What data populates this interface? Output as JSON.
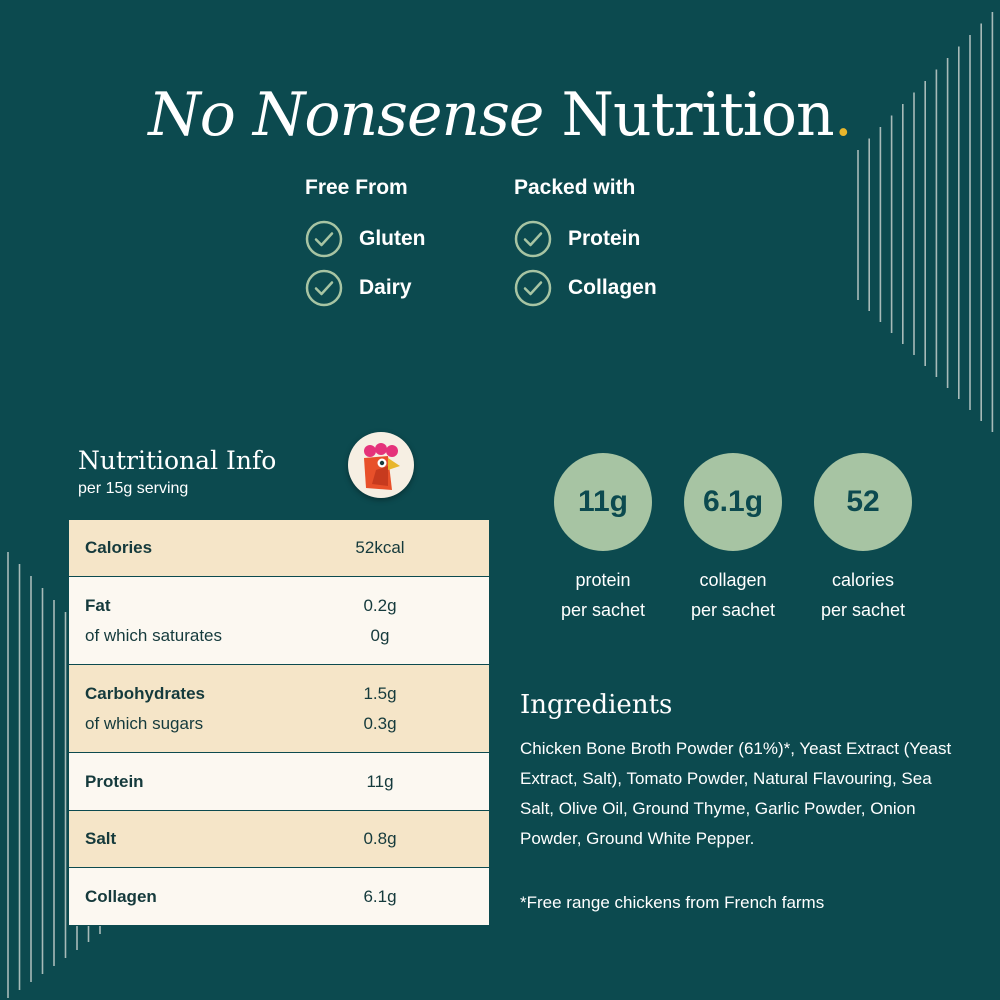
{
  "headline": {
    "italic": "No Nonsense",
    "regular": "Nutrition",
    "dot": "."
  },
  "free_from": {
    "title": "Free From",
    "items": [
      "Gluten",
      "Dairy"
    ]
  },
  "packed_with": {
    "title": "Packed with",
    "items": [
      "Protein",
      "Collagen"
    ]
  },
  "nutrition": {
    "title": "Nutritional Info",
    "subtitle": "per 15g serving",
    "rows": [
      {
        "label": "Calories",
        "value": "52kcal"
      },
      {
        "label": "Fat",
        "value": "0.2g",
        "sub_label": "of which saturates",
        "sub_value": "0g"
      },
      {
        "label": "Carbohydrates",
        "value": "1.5g",
        "sub_label": "of which sugars",
        "sub_value": "0.3g"
      },
      {
        "label": "Protein",
        "value": "11g"
      },
      {
        "label": "Salt",
        "value": "0.8g"
      },
      {
        "label": "Collagen",
        "value": "6.1g"
      }
    ]
  },
  "stats": [
    {
      "value": "11g",
      "line1": "protein",
      "line2": "per sachet"
    },
    {
      "value": "6.1g",
      "line1": "collagen",
      "line2": "per sachet"
    },
    {
      "value": "52",
      "line1": "calories",
      "line2": "per sachet"
    }
  ],
  "ingredients": {
    "title": "Ingredients",
    "text": "Chicken Bone Broth Powder (61%)*, Yeast Extract (Yeast Extract, Salt), Tomato Powder, Natural Flavouring, Sea Salt, Olive Oil, Ground Thyme, Garlic Powder, Onion Powder, Ground White Pepper.",
    "note": "*Free range chickens from French farms"
  },
  "colors": {
    "background": "#0c4a4f",
    "accent_dot": "#e8b62c",
    "table_alt_row": "#f5e5c8",
    "table_plain_row": "#fcf8f1",
    "stat_circle": "#a7c4a3",
    "check_icon": "#a7c4a3"
  },
  "icons": [
    "check-circle-icon",
    "rooster-logo-icon",
    "decorative-lines"
  ]
}
